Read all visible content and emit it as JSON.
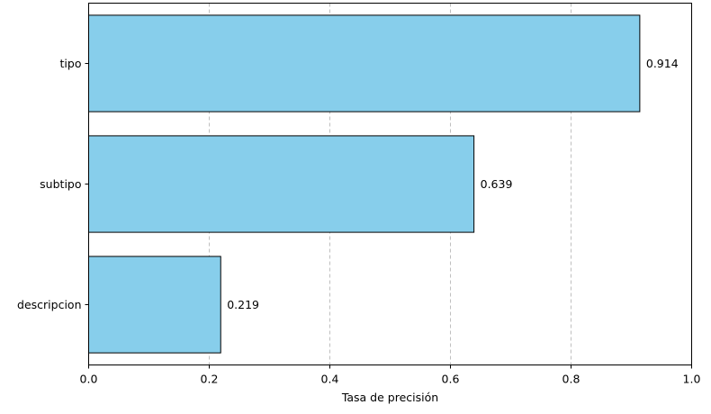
{
  "chart_data": {
    "type": "bar",
    "orientation": "horizontal",
    "categories": [
      "tipo",
      "subtipo",
      "descripcion"
    ],
    "values": [
      0.914,
      0.639,
      0.219
    ],
    "value_labels": [
      "0.914",
      "0.639",
      "0.219"
    ],
    "title": "",
    "xlabel": "Tasa de precisión",
    "ylabel": "",
    "xlim": [
      0,
      1.0
    ],
    "xticks": [
      "0.0",
      "0.2",
      "0.4",
      "0.6",
      "0.8",
      "1.0"
    ],
    "grid": "x-dashed",
    "bar_color": "#87ceeb",
    "bar_edge_color": "#000000",
    "grid_color": "#b0b0b0"
  }
}
